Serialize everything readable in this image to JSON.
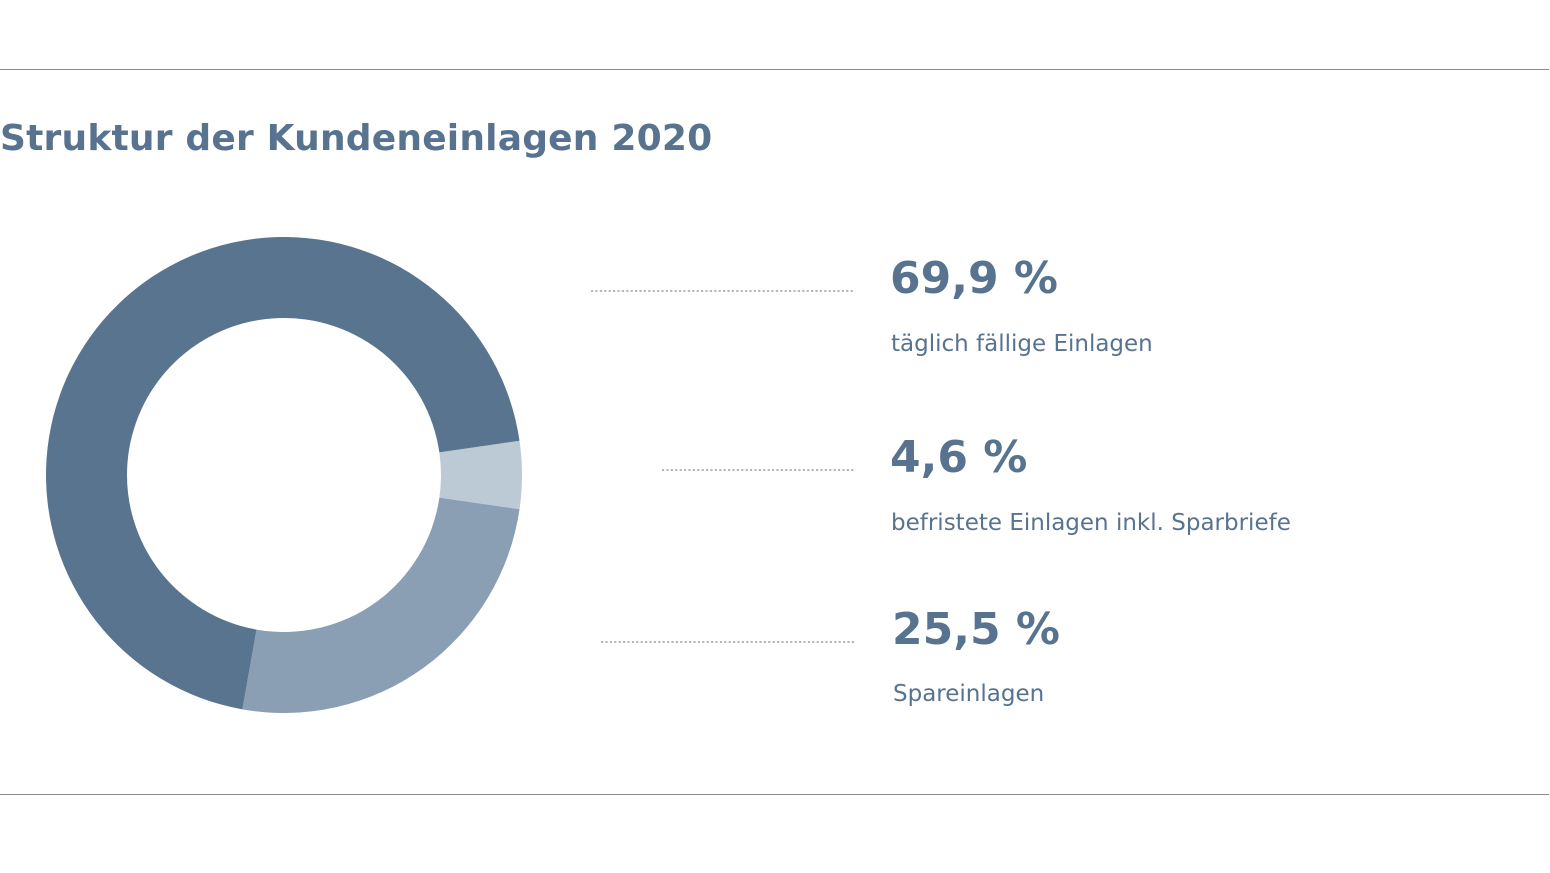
{
  "title": "Struktur der Kundeneinlagen 2020",
  "chart_data": {
    "type": "pie",
    "variant": "donut",
    "title": "Struktur der Kundeneinlagen 2020",
    "unit": "%",
    "slices": [
      {
        "label": "täglich fällige Einlagen",
        "value": 69.9,
        "display": "69,9 %",
        "color": "#58748f"
      },
      {
        "label": "befristete Einlagen inkl. Sparbriefe",
        "value": 4.6,
        "display": "4,6 %",
        "color": "#bccad6"
      },
      {
        "label": "Spareinlagen",
        "value": 25.5,
        "display": "25,5 %",
        "color": "#8a9fb4"
      }
    ],
    "legend": "right"
  },
  "colors": {
    "text": "#58738f",
    "rule": "#8a8a8a",
    "leader": "#8a8a8a"
  }
}
